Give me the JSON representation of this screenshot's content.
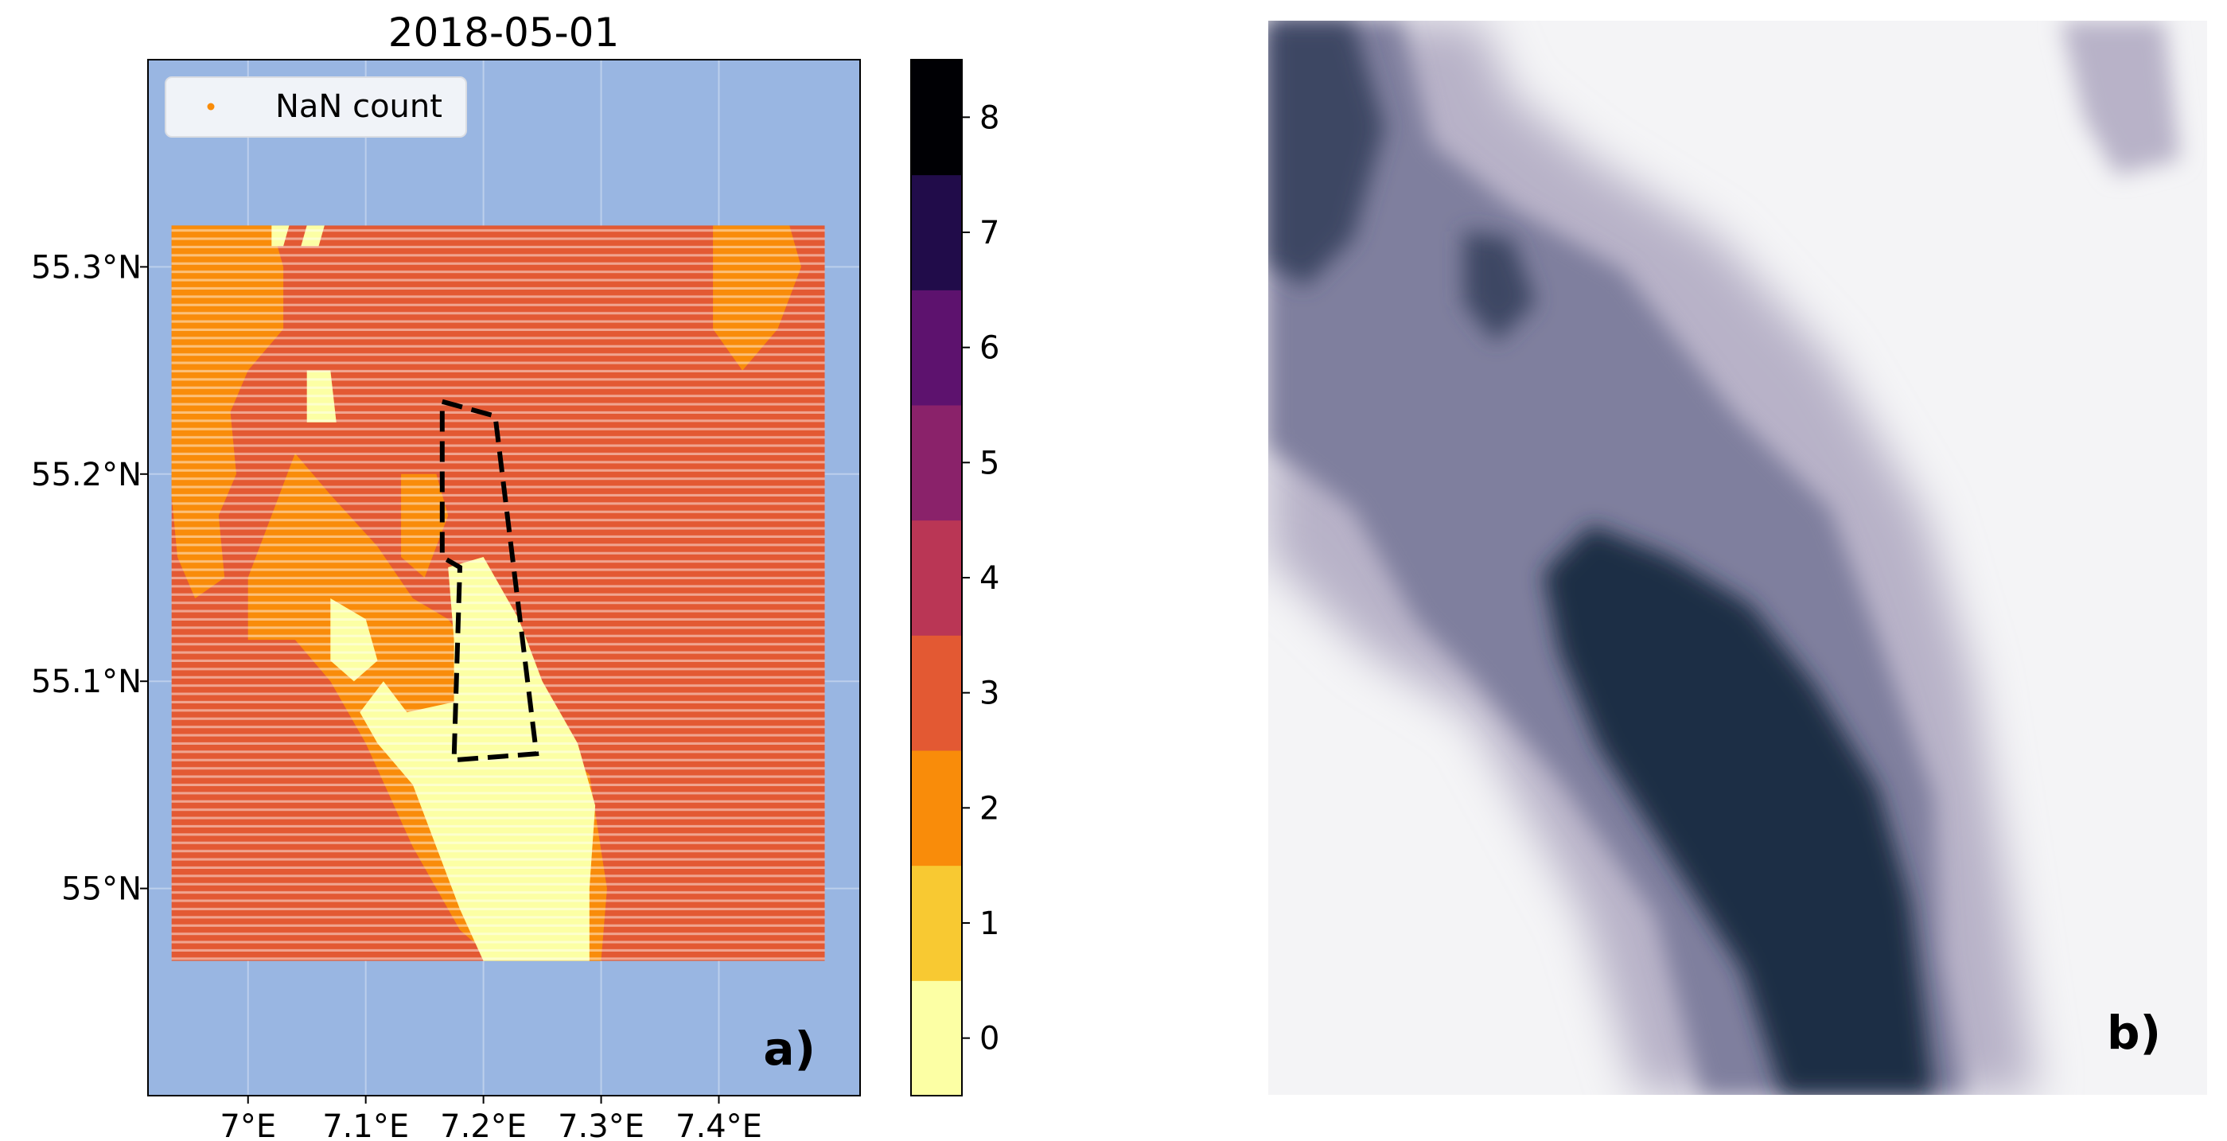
{
  "chart_data": [
    {
      "type": "heatmap",
      "title": "2018-05-01",
      "panel_label": "a)",
      "map_background_color": "#99B6E2",
      "grid": true,
      "legend": {
        "label": "NaN count",
        "marker_color": "#F98C0A",
        "placement": "top-left"
      },
      "x_axis": {
        "range": [
          6.915,
          7.52
        ],
        "ticks": [
          7.0,
          7.1,
          7.2,
          7.3,
          7.4
        ],
        "tick_labels": [
          "7°E",
          "7.1°E",
          "7.2°E",
          "7.3°E",
          "7.4°E"
        ]
      },
      "y_axis": {
        "range": [
          54.9,
          55.4
        ],
        "ticks": [
          55.0,
          55.1,
          55.2,
          55.3
        ],
        "tick_labels": [
          "55°N",
          "55.1°N",
          "55.2°N",
          "55.3°N"
        ]
      },
      "data_extent": {
        "lon": [
          6.935,
          7.49
        ],
        "lat": [
          54.965,
          55.32
        ]
      },
      "colorbar": {
        "levels": [
          0,
          1,
          2,
          3,
          4,
          5,
          6,
          7,
          8
        ],
        "tick_labels": [
          "0",
          "1",
          "2",
          "3",
          "4",
          "5",
          "6",
          "7",
          "8"
        ],
        "colors": [
          "#FCFFA4",
          "#F8C932",
          "#F98C0A",
          "#E35933",
          "#BA3655",
          "#8A226A",
          "#5D126E",
          "#210C4A",
          "#000004"
        ]
      },
      "regions": [
        {
          "nan_count": 3,
          "description": "background cells",
          "polygon": [
            [
              6.935,
              54.965
            ],
            [
              7.49,
              54.965
            ],
            [
              7.49,
              55.32
            ],
            [
              6.935,
              55.32
            ]
          ]
        },
        {
          "nan_count": 2,
          "description": "western band",
          "polygon": [
            [
              6.935,
              55.32
            ],
            [
              7.02,
              55.32
            ],
            [
              7.03,
              55.3
            ],
            [
              7.03,
              55.27
            ],
            [
              7.0,
              55.25
            ],
            [
              6.985,
              55.23
            ],
            [
              6.99,
              55.2
            ],
            [
              6.975,
              55.18
            ],
            [
              6.98,
              55.15
            ],
            [
              6.955,
              55.14
            ],
            [
              6.94,
              55.16
            ],
            [
              6.935,
              55.19
            ]
          ]
        },
        {
          "nan_count": 2,
          "description": "central arm",
          "polygon": [
            [
              7.04,
              55.21
            ],
            [
              7.07,
              55.19
            ],
            [
              7.11,
              55.165
            ],
            [
              7.14,
              55.14
            ],
            [
              7.17,
              55.13
            ],
            [
              7.21,
              55.1
            ],
            [
              7.26,
              55.07
            ],
            [
              7.29,
              55.055
            ],
            [
              7.305,
              55.0
            ],
            [
              7.3,
              54.965
            ],
            [
              7.21,
              54.965
            ],
            [
              7.18,
              54.98
            ],
            [
              7.14,
              55.02
            ],
            [
              7.1,
              55.07
            ],
            [
              7.07,
              55.1
            ],
            [
              7.04,
              55.12
            ],
            [
              7.0,
              55.12
            ],
            [
              7.0,
              55.15
            ],
            [
              7.02,
              55.18
            ]
          ]
        },
        {
          "nan_count": 2,
          "description": "upper patch",
          "polygon": [
            [
              7.13,
              55.2
            ],
            [
              7.16,
              55.2
            ],
            [
              7.17,
              55.18
            ],
            [
              7.15,
              55.15
            ],
            [
              7.13,
              55.16
            ]
          ]
        },
        {
          "nan_count": 2,
          "description": "north-east patch",
          "polygon": [
            [
              7.395,
              55.32
            ],
            [
              7.46,
              55.32
            ],
            [
              7.47,
              55.3
            ],
            [
              7.45,
              55.27
            ],
            [
              7.42,
              55.25
            ],
            [
              7.395,
              55.27
            ]
          ]
        },
        {
          "nan_count": 0,
          "description": "main gap",
          "polygon": [
            [
              7.17,
              55.155
            ],
            [
              7.2,
              55.16
            ],
            [
              7.23,
              55.13
            ],
            [
              7.25,
              55.1
            ],
            [
              7.28,
              55.07
            ],
            [
              7.295,
              55.04
            ],
            [
              7.29,
              55.0
            ],
            [
              7.29,
              54.965
            ],
            [
              7.2,
              54.965
            ],
            [
              7.18,
              54.99
            ],
            [
              7.16,
              55.02
            ],
            [
              7.14,
              55.05
            ],
            [
              7.11,
              55.07
            ],
            [
              7.095,
              55.085
            ],
            [
              7.115,
              55.1
            ],
            [
              7.135,
              55.085
            ],
            [
              7.175,
              55.09
            ],
            [
              7.175,
              55.12
            ]
          ]
        },
        {
          "nan_count": 0,
          "description": "small gap north",
          "polygon": [
            [
              7.05,
              55.25
            ],
            [
              7.07,
              55.25
            ],
            [
              7.075,
              55.225
            ],
            [
              7.05,
              55.225
            ]
          ]
        },
        {
          "nan_count": 0,
          "description": "small gap left",
          "polygon": [
            [
              7.07,
              55.14
            ],
            [
              7.1,
              55.13
            ],
            [
              7.11,
              55.11
            ],
            [
              7.09,
              55.1
            ],
            [
              7.07,
              55.11
            ]
          ]
        },
        {
          "nan_count": 0,
          "description": "top edge gaps",
          "polygon": [
            [
              7.02,
              55.32
            ],
            [
              7.035,
              55.32
            ],
            [
              7.03,
              55.31
            ],
            [
              7.02,
              55.31
            ]
          ]
        },
        {
          "nan_count": 0,
          "description": "top edge gaps 2",
          "polygon": [
            [
              7.05,
              55.32
            ],
            [
              7.065,
              55.32
            ],
            [
              7.06,
              55.31
            ],
            [
              7.045,
              55.31
            ]
          ]
        }
      ],
      "dashed_outline": [
        [
          7.165,
          55.235
        ],
        [
          7.21,
          55.228
        ],
        [
          7.245,
          55.065
        ],
        [
          7.175,
          55.062
        ],
        [
          7.18,
          55.155
        ],
        [
          7.165,
          55.16
        ],
        [
          7.165,
          55.235
        ]
      ]
    },
    {
      "type": "image",
      "description": "satellite image of dark water plume on light background",
      "panel_label": "b)",
      "background_color": "#F4F4F6",
      "feature_colors": [
        "#1E2D45",
        "#3C4763",
        "#7F7F9E",
        "#B8B2C8"
      ]
    }
  ]
}
